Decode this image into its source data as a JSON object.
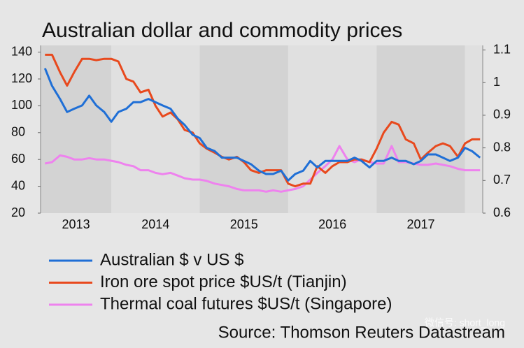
{
  "chart_data": {
    "type": "line",
    "title": "Australian dollar and commodity prices",
    "source": "Source: Thomson Reuters Datastream",
    "watermark": "微信号: short_long",
    "x": [
      2013.25,
      2013.33,
      2013.42,
      2013.5,
      2013.58,
      2013.67,
      2013.75,
      2013.83,
      2013.92,
      2014.0,
      2014.08,
      2014.17,
      2014.25,
      2014.33,
      2014.42,
      2014.5,
      2014.58,
      2014.67,
      2014.75,
      2014.83,
      2014.92,
      2015.0,
      2015.08,
      2015.17,
      2015.25,
      2015.33,
      2015.42,
      2015.5,
      2015.58,
      2015.67,
      2015.75,
      2015.83,
      2015.92,
      2016.0,
      2016.08,
      2016.17,
      2016.25,
      2016.33,
      2016.42,
      2016.5,
      2016.58,
      2016.67,
      2016.75,
      2016.83,
      2016.92,
      2017.0,
      2017.08,
      2017.17,
      2017.25,
      2017.33,
      2017.42,
      2017.5,
      2017.58,
      2017.67,
      2017.75,
      2017.83,
      2017.92,
      2018.0,
      2018.08,
      2018.17
    ],
    "xlim": [
      2013.2,
      2018.2
    ],
    "xticks": [
      {
        "value": 2013.5,
        "label": "2013"
      },
      {
        "value": 2014.5,
        "label": "2014"
      },
      {
        "value": 2015.5,
        "label": "2015"
      },
      {
        "value": 2016.5,
        "label": "2016"
      },
      {
        "value": 2017.5,
        "label": "2017"
      }
    ],
    "ylim": [
      20,
      145
    ],
    "yticks": [
      20,
      40,
      60,
      80,
      100,
      120,
      140
    ],
    "y2lim": [
      0.6,
      1.114
    ],
    "y2ticks": [
      0.6,
      0.7,
      0.8,
      0.9,
      1.0,
      1.1
    ],
    "series": [
      {
        "name": "Australian $ v US $",
        "color": "#1f6fd6",
        "axis": "y2",
        "values": [
          1.044,
          0.99,
          0.95,
          0.91,
          0.92,
          0.93,
          0.96,
          0.93,
          0.91,
          0.88,
          0.91,
          0.92,
          0.94,
          0.94,
          0.95,
          0.94,
          0.93,
          0.92,
          0.89,
          0.87,
          0.84,
          0.83,
          0.8,
          0.79,
          0.77,
          0.77,
          0.77,
          0.76,
          0.75,
          0.73,
          0.72,
          0.72,
          0.73,
          0.7,
          0.72,
          0.73,
          0.76,
          0.74,
          0.76,
          0.76,
          0.76,
          0.76,
          0.77,
          0.76,
          0.74,
          0.76,
          0.76,
          0.77,
          0.76,
          0.76,
          0.75,
          0.76,
          0.78,
          0.78,
          0.77,
          0.76,
          0.77,
          0.8,
          0.79,
          0.77
        ]
      },
      {
        "name": "Iron ore spot price $US/t (Tianjin)",
        "color": "#e8491d",
        "values": [
          138,
          138,
          125,
          115,
          125,
          135,
          135,
          134,
          135,
          135,
          133,
          120,
          118,
          110,
          112,
          100,
          92,
          95,
          90,
          82,
          80,
          72,
          68,
          65,
          62,
          60,
          62,
          58,
          52,
          50,
          52,
          52,
          52,
          42,
          40,
          42,
          42,
          55,
          50,
          55,
          58,
          58,
          60,
          60,
          58,
          68,
          80,
          88,
          86,
          75,
          72,
          60,
          65,
          70,
          72,
          70,
          62,
          72,
          75,
          75
        ]
      },
      {
        "name": "Thermal coal futures $US/t (Singapore)",
        "color": "#ee82ee",
        "values": [
          57,
          58,
          63,
          62,
          60,
          60,
          61,
          60,
          60,
          59,
          58,
          56,
          55,
          52,
          52,
          50,
          49,
          50,
          48,
          46,
          45,
          45,
          44,
          42,
          41,
          40,
          38,
          37,
          37,
          37,
          36,
          37,
          36,
          37,
          38,
          40,
          45,
          50,
          55,
          60,
          70,
          60,
          58,
          60,
          58,
          57,
          57,
          70,
          58,
          58,
          57,
          56,
          56,
          57,
          56,
          55,
          53,
          52,
          52,
          52
        ]
      }
    ]
  }
}
